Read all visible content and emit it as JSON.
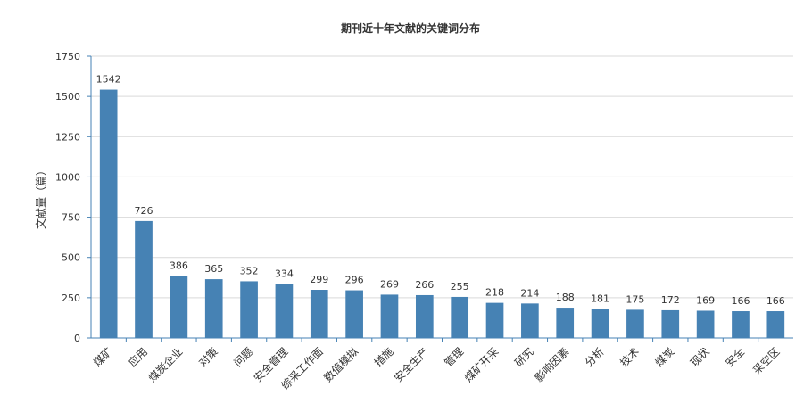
{
  "chart_data": {
    "type": "bar",
    "title": "期刊近十年文献的关键词分布",
    "xlabel": "",
    "ylabel": "文献量（篇）",
    "ylim": [
      0,
      1750
    ],
    "yticks": [
      0,
      250,
      500,
      750,
      1000,
      1250,
      1500,
      1750
    ],
    "grid": true,
    "legend": "none",
    "bar_color": "#4682B4",
    "categories": [
      "煤矿",
      "应用",
      "煤炭企业",
      "对策",
      "问题",
      "安全管理",
      "综采工作面",
      "数值模拟",
      "措施",
      "安全生产",
      "管理",
      "煤矿开采",
      "研究",
      "影响因素",
      "分析",
      "技术",
      "煤炭",
      "现状",
      "安全",
      "采空区"
    ],
    "values": [
      1542,
      726,
      386,
      365,
      352,
      334,
      299,
      296,
      269,
      266,
      255,
      218,
      214,
      188,
      181,
      175,
      172,
      169,
      166,
      166
    ]
  }
}
